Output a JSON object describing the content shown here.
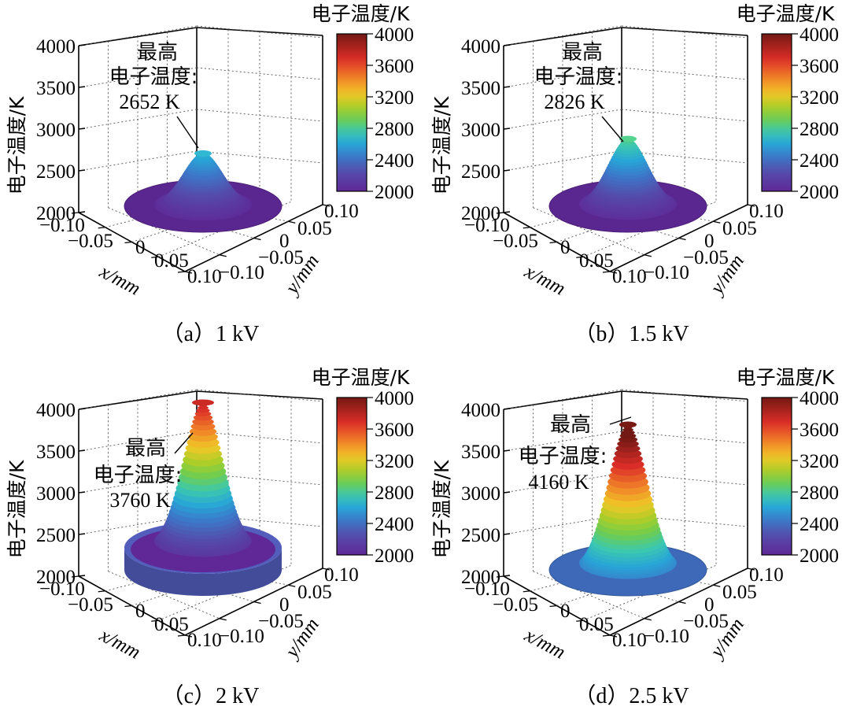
{
  "chart_data": [
    {
      "type": "surface3d",
      "caption": "（a）1 kV",
      "colorbar_title": "电子温度/K",
      "colorbar_ticks": [
        "4000",
        "3600",
        "3200",
        "2800",
        "2400",
        "2000"
      ],
      "colorbar_range": [
        2000,
        4000
      ],
      "z_label": "电子温度/K",
      "z_ticks": [
        "4000",
        "3500",
        "3000",
        "2500",
        "2000"
      ],
      "z_range": [
        2000,
        4000
      ],
      "x_label": "x/mm",
      "x_ticks": [
        "−0.10",
        "−0.05",
        "0",
        "0.05",
        "0.10"
      ],
      "y_label": "y/mm",
      "y_ticks": [
        "−0.10",
        "−0.05",
        "0",
        "0.05",
        "0.10"
      ],
      "annotation": [
        "最高",
        "电子温度:",
        "2652 K"
      ],
      "peak_temperature_K": 2652,
      "base_temperature_K": 2000,
      "rim_temperature_K": 2000
    },
    {
      "type": "surface3d",
      "caption": "（b）1.5 kV",
      "colorbar_title": "电子温度/K",
      "colorbar_ticks": [
        "4000",
        "3600",
        "3200",
        "2800",
        "2400",
        "2000"
      ],
      "colorbar_range": [
        2000,
        4000
      ],
      "z_label": "电子温度/K",
      "z_ticks": [
        "4000",
        "3500",
        "3000",
        "2500",
        "2000"
      ],
      "z_range": [
        2000,
        4000
      ],
      "x_label": "x/mm",
      "x_ticks": [
        "−0.10",
        "−0.05",
        "0",
        "0.05",
        "0.10"
      ],
      "y_label": "y/mm",
      "y_ticks": [
        "−0.10",
        "−0.05",
        "0",
        "0.05",
        "0.10"
      ],
      "annotation": [
        "最高",
        "电子温度:",
        "2826 K"
      ],
      "peak_temperature_K": 2826,
      "base_temperature_K": 2000,
      "rim_temperature_K": 2000
    },
    {
      "type": "surface3d",
      "caption": "（c）2 kV",
      "colorbar_title": "电子温度/K",
      "colorbar_ticks": [
        "4000",
        "3600",
        "3200",
        "2800",
        "2400",
        "2000"
      ],
      "colorbar_range": [
        2000,
        4000
      ],
      "z_label": "电子温度/K",
      "z_ticks": [
        "4000",
        "3500",
        "3000",
        "2500",
        "2000"
      ],
      "z_range": [
        2000,
        4000
      ],
      "x_label": "x/mm",
      "x_ticks": [
        "−0.10",
        "−0.05",
        "0",
        "0.05",
        "0.10"
      ],
      "y_label": "y/mm",
      "y_ticks": [
        "−0.10",
        "−0.05",
        "0",
        "0.05",
        "0.10"
      ],
      "annotation": [
        "最高",
        "电子温度:",
        "3760 K"
      ],
      "peak_temperature_K": 3760,
      "base_temperature_K": 2000,
      "rim_temperature_K": 2300
    },
    {
      "type": "surface3d",
      "caption": "（d）2.5 kV",
      "colorbar_title": "电子温度/K",
      "colorbar_ticks": [
        "4000",
        "3600",
        "3200",
        "2800",
        "2400",
        "2000"
      ],
      "colorbar_range": [
        2000,
        4000
      ],
      "z_label": "电子温度/K",
      "z_ticks": [
        "4000",
        "3500",
        "3000",
        "2500",
        "2000"
      ],
      "z_range": [
        2000,
        4000
      ],
      "x_label": "x/mm",
      "x_ticks": [
        "−0.10",
        "−0.05",
        "0",
        "0.05",
        "0.10"
      ],
      "y_label": "y/mm",
      "y_ticks": [
        "−0.10",
        "−0.05",
        "0",
        "0.05",
        "0.10"
      ],
      "annotation": [
        "最高",
        "电子温度:",
        "4160 K"
      ],
      "peak_temperature_K": 4160,
      "base_temperature_K": 2400,
      "rim_temperature_K": 2450
    }
  ]
}
